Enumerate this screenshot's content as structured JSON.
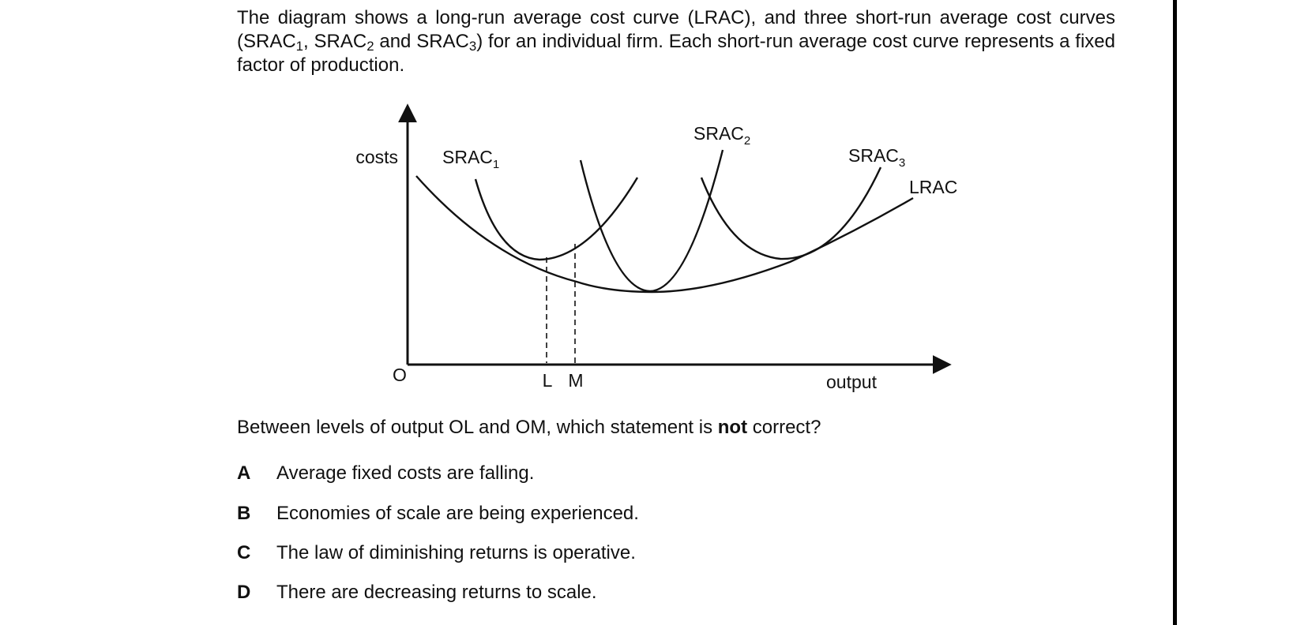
{
  "intro": {
    "part1": "The diagram shows a long-run average cost curve (LRAC), and three short-run average cost curves (SRAC",
    "sub1": "1",
    "part2": ", SRAC",
    "sub2": "2",
    "part3": " and SRAC",
    "sub3": "3",
    "part4": ") for an individual firm. Each short-run average cost curve represents a fixed factor of production."
  },
  "diagram": {
    "y_axis_label": "costs",
    "x_axis_label": "output",
    "origin_label": "O",
    "marker_l": "L",
    "marker_m": "M",
    "curve_labels": {
      "srac1_base": "SRAC",
      "srac1_sub": "1",
      "srac2_base": "SRAC",
      "srac2_sub": "2",
      "srac3_base": "SRAC",
      "srac3_sub": "3",
      "lrac": "LRAC"
    }
  },
  "question": {
    "before": "Between levels of output OL and OM, which statement is ",
    "emphasis": "not",
    "after": " correct?"
  },
  "options": [
    {
      "letter": "A",
      "text": "Average fixed costs are falling."
    },
    {
      "letter": "B",
      "text": "Economies of scale are being experienced."
    },
    {
      "letter": "C",
      "text": "The law of diminishing returns is operative."
    },
    {
      "letter": "D",
      "text": "There are decreasing returns to scale."
    }
  ]
}
